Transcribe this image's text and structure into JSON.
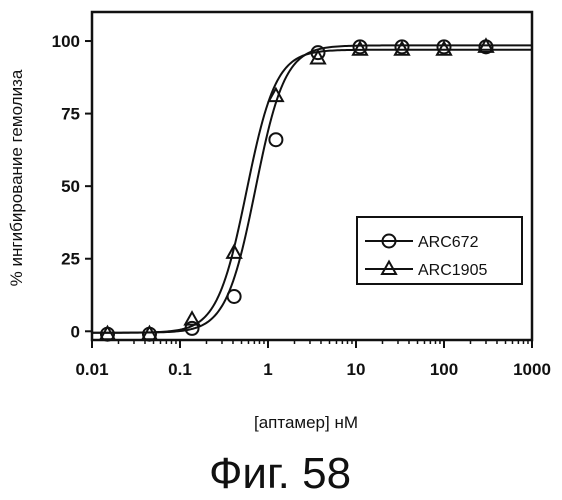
{
  "caption": "Фиг. 58",
  "chart_data": {
    "type": "scatter",
    "xlabel": "[аптамер] нМ",
    "ylabel": "% ингибирование гемолиза",
    "x_scale": "log",
    "xlim": [
      0.01,
      1000
    ],
    "ylim": [
      -3,
      110
    ],
    "x_ticks": [
      0.01,
      0.1,
      1,
      10,
      100,
      1000
    ],
    "x_tick_labels": [
      "0.01",
      "0.1",
      "1",
      "10",
      "100",
      "1000"
    ],
    "y_ticks": [
      0,
      25,
      50,
      75,
      100
    ],
    "y_tick_labels": [
      "0",
      "25",
      "50",
      "75",
      "100"
    ],
    "grid": false,
    "legend_position": "middle-right",
    "series": [
      {
        "name": "ARC672",
        "marker": "circle",
        "x": [
          0.015,
          0.045,
          0.137,
          0.412,
          1.23,
          3.7,
          11.1,
          33.3,
          100,
          300
        ],
        "y": [
          -1,
          -1,
          1,
          12,
          66,
          96,
          98,
          98,
          98,
          98
        ],
        "fit": {
          "bottom": -0.5,
          "top": 98.5,
          "ec50": 0.72,
          "hill": 2.6
        }
      },
      {
        "name": "ARC1905",
        "marker": "triangle",
        "x": [
          0.015,
          0.045,
          0.137,
          0.412,
          1.23,
          3.7,
          11.1,
          33.3,
          100,
          300
        ],
        "y": [
          -1,
          -1,
          4,
          27,
          81,
          94,
          97,
          97,
          97,
          98
        ],
        "fit": {
          "bottom": -0.5,
          "top": 97,
          "ec50": 0.57,
          "hill": 2.6
        }
      }
    ]
  }
}
